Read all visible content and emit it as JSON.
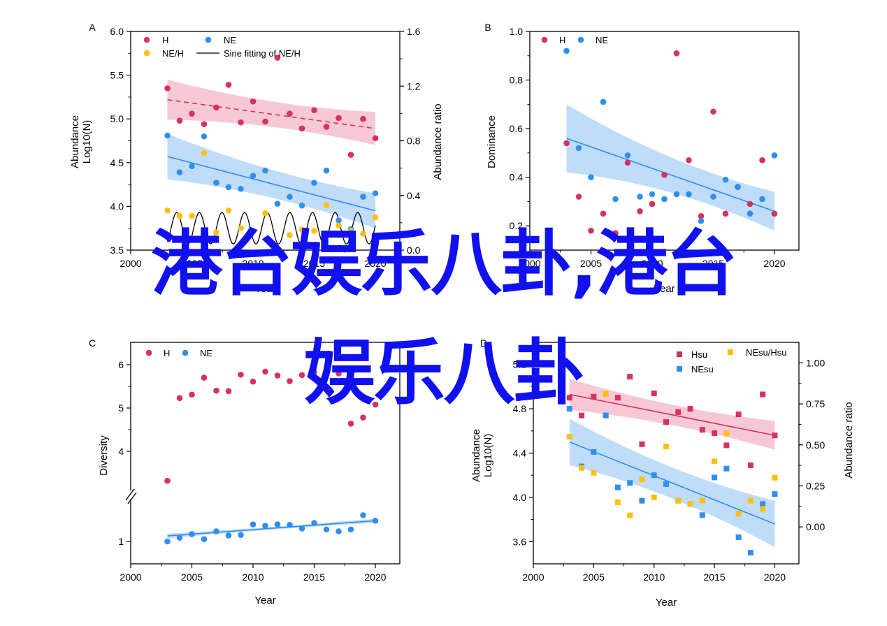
{
  "colors": {
    "h": "#d6325f",
    "ne": "#2f8ff0",
    "ratio": "#ffbf10",
    "h_band": "#f3b5c8",
    "ne_band": "#a9d0f5",
    "overlay": "#1010f0"
  },
  "overlay_text": {
    "line1": "港台娱乐八卦,港台",
    "line2": "娱乐八卦"
  },
  "chart_data": [
    {
      "panel": "A",
      "type": "scatter",
      "xlabel": "Year",
      "ylabel_left": "Abundance Log10(N)",
      "ylabel_right": "Abundance ratio",
      "xlim": [
        2000,
        2022
      ],
      "ylim": [
        3.5,
        6.0
      ],
      "y2lim": [
        0.0,
        1.6
      ],
      "x_ticks": [
        "2000",
        "2005",
        "2010",
        "2015",
        "2020"
      ],
      "y_ticks": [
        "3.5",
        "4.0",
        "4.5",
        "5.0",
        "5.5",
        "6.0"
      ],
      "y2_ticks": [
        "0.0",
        "0.4",
        "0.8",
        "1.2",
        "1.6"
      ],
      "legend": [
        "H",
        "NE",
        "NE/H",
        "Sine fitting of NE/H"
      ],
      "series": [
        {
          "name": "H",
          "x": [
            2003,
            2004,
            2005,
            2006,
            2007,
            2008,
            2009,
            2010,
            2011,
            2012,
            2013,
            2014,
            2015,
            2016,
            2017,
            2018,
            2019,
            2020
          ],
          "y": [
            5.35,
            4.98,
            5.06,
            4.94,
            5.13,
            5.39,
            4.96,
            5.2,
            4.97,
            5.7,
            5.06,
            4.89,
            5.1,
            4.91,
            5.01,
            4.59,
            5.0,
            4.78
          ],
          "trend": [
            5.22,
            4.89
          ]
        },
        {
          "name": "NE",
          "x": [
            2003,
            2004,
            2005,
            2006,
            2007,
            2008,
            2009,
            2010,
            2011,
            2012,
            2013,
            2014,
            2015,
            2016,
            2017,
            2018,
            2019,
            2020
          ],
          "y": [
            4.81,
            4.39,
            4.46,
            4.8,
            4.27,
            4.22,
            4.2,
            4.35,
            4.41,
            4.03,
            4.11,
            4.01,
            4.27,
            4.41,
            3.84,
            3.74,
            4.11,
            4.15
          ],
          "trend": [
            4.57,
            3.95
          ]
        },
        {
          "name": "NE/H",
          "axis": "right",
          "x": [
            2003,
            2004,
            2005,
            2006,
            2007,
            2008,
            2009,
            2010,
            2011,
            2012,
            2013,
            2014,
            2015,
            2016,
            2017,
            2018,
            2019,
            2020
          ],
          "y": [
            0.29,
            0.25,
            0.25,
            0.71,
            0.13,
            0.29,
            0.16,
            0.14,
            0.27,
            0.01,
            0.11,
            0.15,
            0.14,
            0.33,
            0.18,
            0.14,
            0.12,
            0.24
          ]
        }
      ]
    },
    {
      "panel": "B",
      "type": "scatter",
      "xlabel": "Year",
      "ylabel": "Dominance",
      "xlim": [
        2000,
        2022
      ],
      "ylim": [
        0.1,
        1.0
      ],
      "x_ticks": [
        "2000",
        "2005",
        "2010",
        "2015",
        "2020"
      ],
      "y_ticks": [
        "0.2",
        "0.4",
        "0.6",
        "0.8",
        "1.0"
      ],
      "legend": [
        "H",
        "NE"
      ],
      "series": [
        {
          "name": "H",
          "x": [
            2003,
            2004,
            2005,
            2006,
            2007,
            2008,
            2009,
            2010,
            2011,
            2012,
            2013,
            2014,
            2015,
            2016,
            2017,
            2018,
            2019,
            2020
          ],
          "y": [
            0.54,
            0.32,
            0.18,
            0.25,
            0.17,
            0.46,
            0.26,
            0.29,
            0.41,
            0.91,
            0.47,
            0.24,
            0.67,
            0.25,
            0.36,
            0.29,
            0.47,
            0.25
          ]
        },
        {
          "name": "NE",
          "x": [
            2003,
            2004,
            2005,
            2006,
            2007,
            2008,
            2009,
            2010,
            2011,
            2012,
            2013,
            2014,
            2015,
            2016,
            2017,
            2018,
            2019,
            2020
          ],
          "y": [
            0.92,
            0.52,
            0.4,
            0.71,
            0.31,
            0.49,
            0.32,
            0.33,
            0.31,
            0.33,
            0.33,
            0.22,
            0.32,
            0.39,
            0.36,
            0.25,
            0.31,
            0.49
          ],
          "trend": [
            0.56,
            0.26
          ]
        }
      ]
    },
    {
      "panel": "C",
      "type": "scatter",
      "xlabel": "Year",
      "ylabel": "Diversity",
      "xlim": [
        2000,
        2022
      ],
      "x_ticks": [
        "2000",
        "2005",
        "2010",
        "2015",
        "2020"
      ],
      "y_ticks": [
        "1",
        "4",
        "5",
        "6"
      ],
      "axis_break": true,
      "legend": [
        "H",
        "NE"
      ],
      "series": [
        {
          "name": "H",
          "x": [
            2003,
            2004,
            2005,
            2006,
            2007,
            2008,
            2009,
            2010,
            2011,
            2012,
            2013,
            2014,
            2015,
            2016,
            2017,
            2018,
            2019,
            2020
          ],
          "y": [
            3.32,
            5.23,
            5.31,
            5.7,
            5.4,
            5.39,
            5.77,
            5.61,
            5.84,
            5.75,
            5.62,
            5.76,
            5.83,
            5.85,
            5.8,
            4.64,
            4.78,
            5.08
          ]
        },
        {
          "name": "NE",
          "x": [
            2003,
            2004,
            2005,
            2006,
            2007,
            2008,
            2009,
            2010,
            2011,
            2012,
            2013,
            2014,
            2015,
            2016,
            2017,
            2018,
            2019,
            2020
          ],
          "y": [
            1.0,
            1.08,
            1.16,
            1.05,
            1.22,
            1.13,
            1.14,
            1.37,
            1.34,
            1.37,
            1.36,
            1.28,
            1.4,
            1.26,
            1.22,
            1.26,
            1.57,
            1.45
          ],
          "trend": [
            1.12,
            1.45
          ]
        }
      ]
    },
    {
      "panel": "D",
      "type": "scatter",
      "xlabel": "Year",
      "ylabel_left": "Abundance Log10(N)",
      "ylabel_right": "Abundance ratio",
      "xlim": [
        2000,
        2022
      ],
      "ylim": [
        3.4,
        5.4
      ],
      "y2lim": [
        -0.225,
        1.125
      ],
      "x_ticks": [
        "2000",
        "2005",
        "2010",
        "2015",
        "2020"
      ],
      "y_ticks": [
        "3.6",
        "4.0",
        "4.4",
        "4.8",
        "5.2"
      ],
      "y2_ticks": [
        "0.00",
        "0.25",
        "0.50",
        "0.75",
        "1.00"
      ],
      "legend": [
        "Hsu",
        "NEsu",
        "NEsu/Hsu"
      ],
      "series": [
        {
          "name": "Hsu",
          "x": [
            2003,
            2004,
            2005,
            2006,
            2007,
            2008,
            2009,
            2010,
            2011,
            2012,
            2013,
            2014,
            2015,
            2016,
            2017,
            2018,
            2019,
            2020
          ],
          "y": [
            4.9,
            4.74,
            4.91,
            4.74,
            4.9,
            5.09,
            4.48,
            4.94,
            4.68,
            4.77,
            4.8,
            4.61,
            4.58,
            4.47,
            4.75,
            4.29,
            4.93,
            4.56
          ],
          "trend": [
            4.93,
            4.56
          ]
        },
        {
          "name": "NEsu",
          "x": [
            2003,
            2004,
            2005,
            2006,
            2007,
            2008,
            2009,
            2010,
            2011,
            2012,
            2013,
            2014,
            2015,
            2016,
            2017,
            2018,
            2019,
            2020
          ],
          "y": [
            4.8,
            4.28,
            4.41,
            4.74,
            4.09,
            4.13,
            3.97,
            4.2,
            4.12,
            3.97,
            3.94,
            3.84,
            4.18,
            4.26,
            3.64,
            3.5,
            3.94,
            4.03
          ],
          "trend": [
            4.5,
            3.76
          ]
        },
        {
          "name": "NEsu/Hsu",
          "axis": "right",
          "x": [
            2003,
            2004,
            2005,
            2006,
            2007,
            2008,
            2009,
            2010,
            2011,
            2012,
            2013,
            2014,
            2015,
            2016,
            2017,
            2018,
            2019,
            2020
          ],
          "y": [
            0.55,
            0.36,
            0.33,
            0.81,
            0.15,
            0.07,
            0.29,
            0.18,
            0.49,
            0.16,
            0.14,
            0.16,
            0.4,
            0.57,
            0.08,
            0.16,
            0.11,
            0.3
          ]
        }
      ]
    }
  ]
}
